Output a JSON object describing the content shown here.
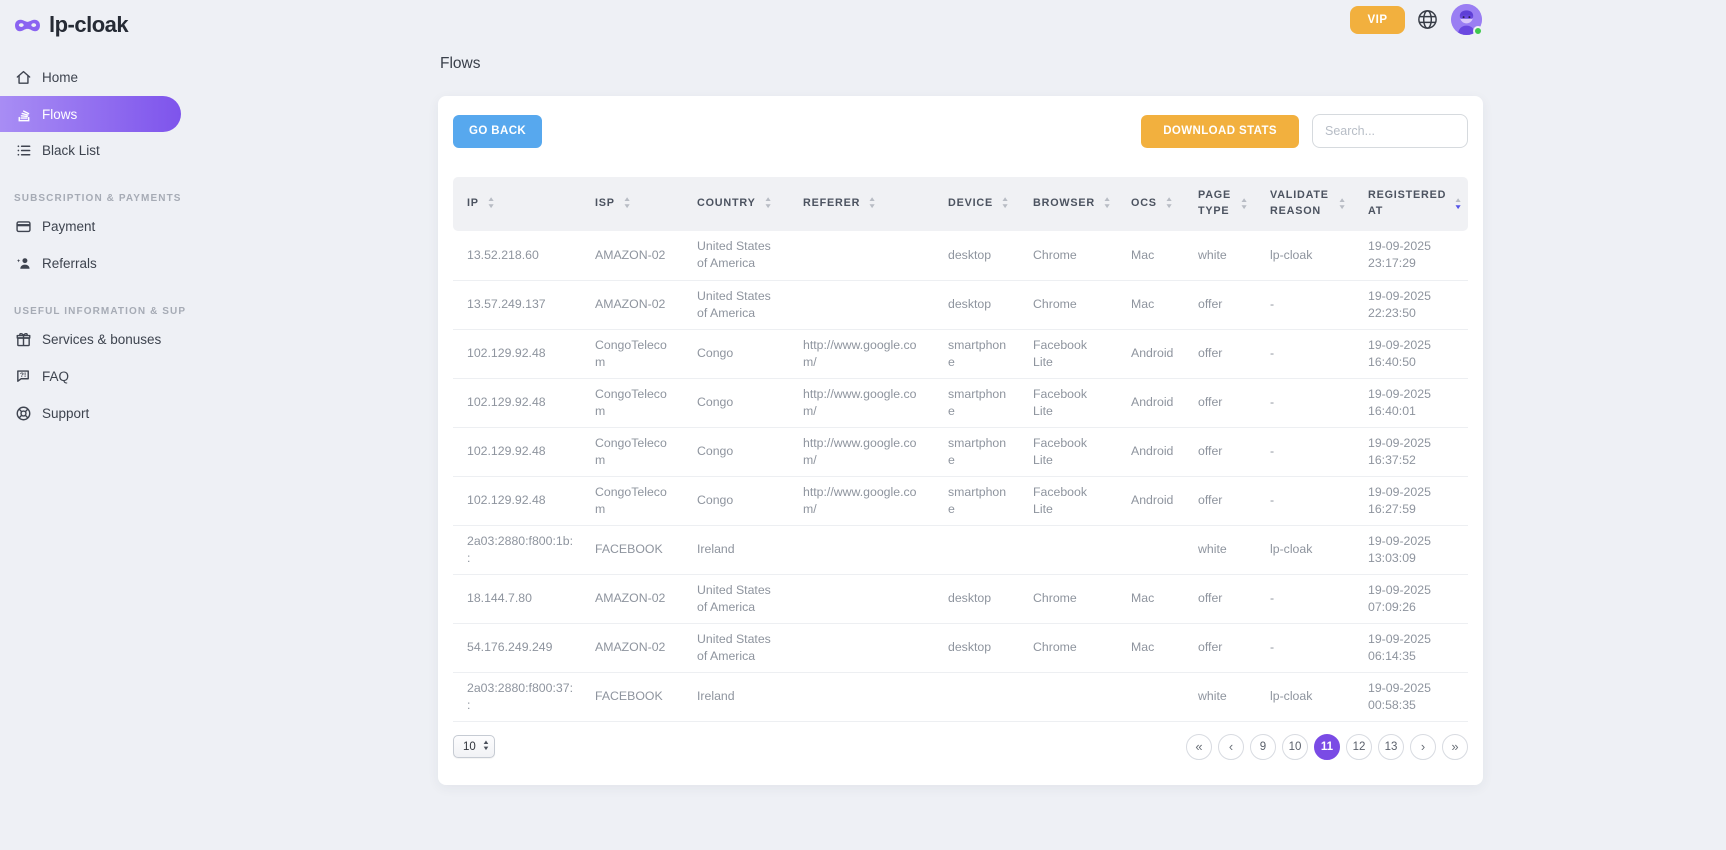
{
  "brand": {
    "name": "lp-cloak"
  },
  "topbar": {
    "vip_label": "VIP",
    "user_status": "online"
  },
  "page": {
    "title": "Flows"
  },
  "sidebar": {
    "main_items": [
      {
        "label": "Home",
        "active": false
      },
      {
        "label": "Flows",
        "active": true
      },
      {
        "label": "Black List",
        "active": false
      }
    ],
    "sections": [
      {
        "title": "SUBSCRIPTION & PAYMENTS",
        "items": [
          {
            "label": "Payment"
          },
          {
            "label": "Referrals"
          }
        ]
      },
      {
        "title": "USEFUL INFORMATION & SUPPORT",
        "items": [
          {
            "label": "Services & bonuses"
          },
          {
            "label": "FAQ"
          },
          {
            "label": "Support"
          }
        ]
      }
    ]
  },
  "toolbar": {
    "go_back": "GO BACK",
    "download_stats": "DOWNLOAD STATS",
    "search_placeholder": "Search..."
  },
  "table": {
    "columns": [
      "IP",
      "ISP",
      "COUNTRY",
      "REFERER",
      "DEVICE",
      "BROWSER",
      "OCS",
      "PAGE TYPE",
      "VALIDATE REASON",
      "REGISTERED AT"
    ],
    "sorted_column": "REGISTERED AT",
    "sort_direction": "desc",
    "rows": [
      {
        "ip": "13.52.218.60",
        "isp": "AMAZON-02",
        "country": "United States of America",
        "referer": "",
        "device": "desktop",
        "browser": "Chrome",
        "ocs": "Mac",
        "page_type": "white",
        "validate_reason": "lp-cloak",
        "registered_date": "19-09-2025",
        "registered_time": "23:17:29"
      },
      {
        "ip": "13.57.249.137",
        "isp": "AMAZON-02",
        "country": "United States of America",
        "referer": "",
        "device": "desktop",
        "browser": "Chrome",
        "ocs": "Mac",
        "page_type": "offer",
        "validate_reason": "-",
        "registered_date": "19-09-2025",
        "registered_time": "22:23:50"
      },
      {
        "ip": "102.129.92.48",
        "isp": "CongoTelecom",
        "country": "Congo",
        "referer": "http://www.google.com/",
        "device": "smartphone",
        "browser": "Facebook Lite",
        "ocs": "Android",
        "page_type": "offer",
        "validate_reason": "-",
        "registered_date": "19-09-2025",
        "registered_time": "16:40:50"
      },
      {
        "ip": "102.129.92.48",
        "isp": "CongoTelecom",
        "country": "Congo",
        "referer": "http://www.google.com/",
        "device": "smartphone",
        "browser": "Facebook Lite",
        "ocs": "Android",
        "page_type": "offer",
        "validate_reason": "-",
        "registered_date": "19-09-2025",
        "registered_time": "16:40:01"
      },
      {
        "ip": "102.129.92.48",
        "isp": "CongoTelecom",
        "country": "Congo",
        "referer": "http://www.google.com/",
        "device": "smartphone",
        "browser": "Facebook Lite",
        "ocs": "Android",
        "page_type": "offer",
        "validate_reason": "-",
        "registered_date": "19-09-2025",
        "registered_time": "16:37:52"
      },
      {
        "ip": "102.129.92.48",
        "isp": "CongoTelecom",
        "country": "Congo",
        "referer": "http://www.google.com/",
        "device": "smartphone",
        "browser": "Facebook Lite",
        "ocs": "Android",
        "page_type": "offer",
        "validate_reason": "-",
        "registered_date": "19-09-2025",
        "registered_time": "16:27:59"
      },
      {
        "ip": "2a03:2880:f800:1b::",
        "isp": "FACEBOOK",
        "country": "Ireland",
        "referer": "",
        "device": "",
        "browser": "",
        "ocs": "",
        "page_type": "white",
        "validate_reason": "lp-cloak",
        "registered_date": "19-09-2025",
        "registered_time": "13:03:09"
      },
      {
        "ip": "18.144.7.80",
        "isp": "AMAZON-02",
        "country": "United States of America",
        "referer": "",
        "device": "desktop",
        "browser": "Chrome",
        "ocs": "Mac",
        "page_type": "offer",
        "validate_reason": "-",
        "registered_date": "19-09-2025",
        "registered_time": "07:09:26"
      },
      {
        "ip": "54.176.249.249",
        "isp": "AMAZON-02",
        "country": "United States of America",
        "referer": "",
        "device": "desktop",
        "browser": "Chrome",
        "ocs": "Mac",
        "page_type": "offer",
        "validate_reason": "-",
        "registered_date": "19-09-2025",
        "registered_time": "06:14:35"
      },
      {
        "ip": "2a03:2880:f800:37::",
        "isp": "FACEBOOK",
        "country": "Ireland",
        "referer": "",
        "device": "",
        "browser": "",
        "ocs": "",
        "page_type": "white",
        "validate_reason": "lp-cloak",
        "registered_date": "19-09-2025",
        "registered_time": "00:58:35"
      }
    ]
  },
  "pagination": {
    "page_size": "10",
    "first": "«",
    "prev": "‹",
    "pages": [
      "9",
      "10",
      "11",
      "12",
      "13"
    ],
    "active_page": "11",
    "next": "›",
    "last": "»"
  },
  "colors": {
    "accent_purple": "#7a4be5",
    "brand_purple": "#8a63f1",
    "orange": "#f2b03e",
    "blue": "#57a8ee",
    "green_status": "#3fc84e",
    "header_bg": "#f0f1f4"
  },
  "icons": {
    "logo": "mask",
    "home": "house",
    "flows": "stack",
    "black_list": "list",
    "payment": "credit-card",
    "referrals": "person-add",
    "services_bonuses": "gift",
    "faq": "chat-bubble",
    "support": "life-buoy",
    "language": "globe",
    "sort": "up-down-triangles",
    "page_size_stepper": "up-down-triangles"
  }
}
